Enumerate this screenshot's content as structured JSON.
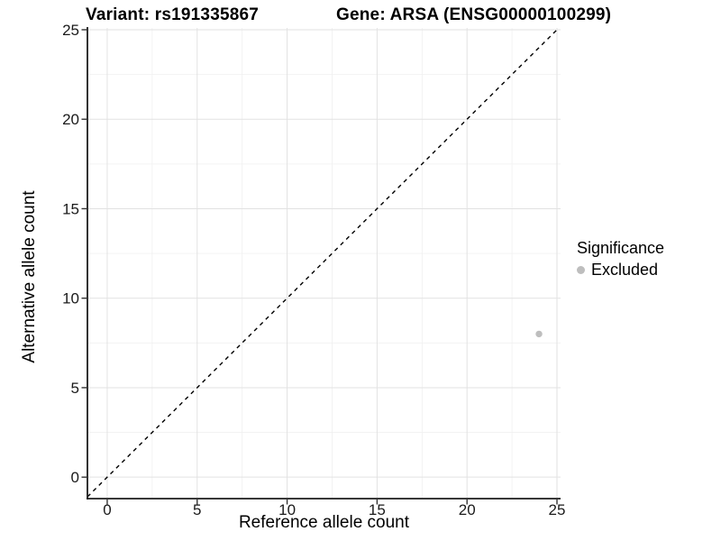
{
  "titles": {
    "variant": "Variant: rs191335867",
    "gene": "Gene: ARSA (ENSG00000100299)"
  },
  "axes": {
    "x_label": "Reference allele count",
    "y_label": "Alternative allele count"
  },
  "legend": {
    "title": "Significance",
    "items": [
      {
        "label": "Excluded",
        "color": "#bebebe"
      }
    ]
  },
  "colors": {
    "background": "#ffffff",
    "grid_major": "#e2e2e2",
    "grid_minor": "#f0f0f0",
    "axis_line": "#1c1c1c",
    "tick_mark": "#333333",
    "tick_text": "#1a1a1a",
    "reference_line": "#000000",
    "point": "#bebebe"
  },
  "chart_data": {
    "type": "scatter",
    "title": "Variant: rs191335867   Gene: ARSA (ENSG00000100299)",
    "xlabel": "Reference allele count",
    "ylabel": "Alternative allele count",
    "xlim": [
      -1.1,
      25.2
    ],
    "ylim": [
      -1.2,
      25.1
    ],
    "x_ticks": [
      0,
      5,
      10,
      15,
      20,
      25
    ],
    "y_ticks": [
      0,
      5,
      10,
      15,
      20,
      25
    ],
    "x_minor": [
      2.5,
      7.5,
      12.5,
      17.5,
      22.5
    ],
    "y_minor": [
      2.5,
      7.5,
      12.5,
      17.5,
      22.5
    ],
    "grid": true,
    "legend_position": "right",
    "series": [
      {
        "name": "Excluded",
        "color": "#bebebe",
        "points": [
          {
            "x": 24,
            "y": 8
          }
        ]
      }
    ],
    "reference_line": {
      "equation": "y = x",
      "style": "dashed",
      "color": "#000000"
    }
  }
}
